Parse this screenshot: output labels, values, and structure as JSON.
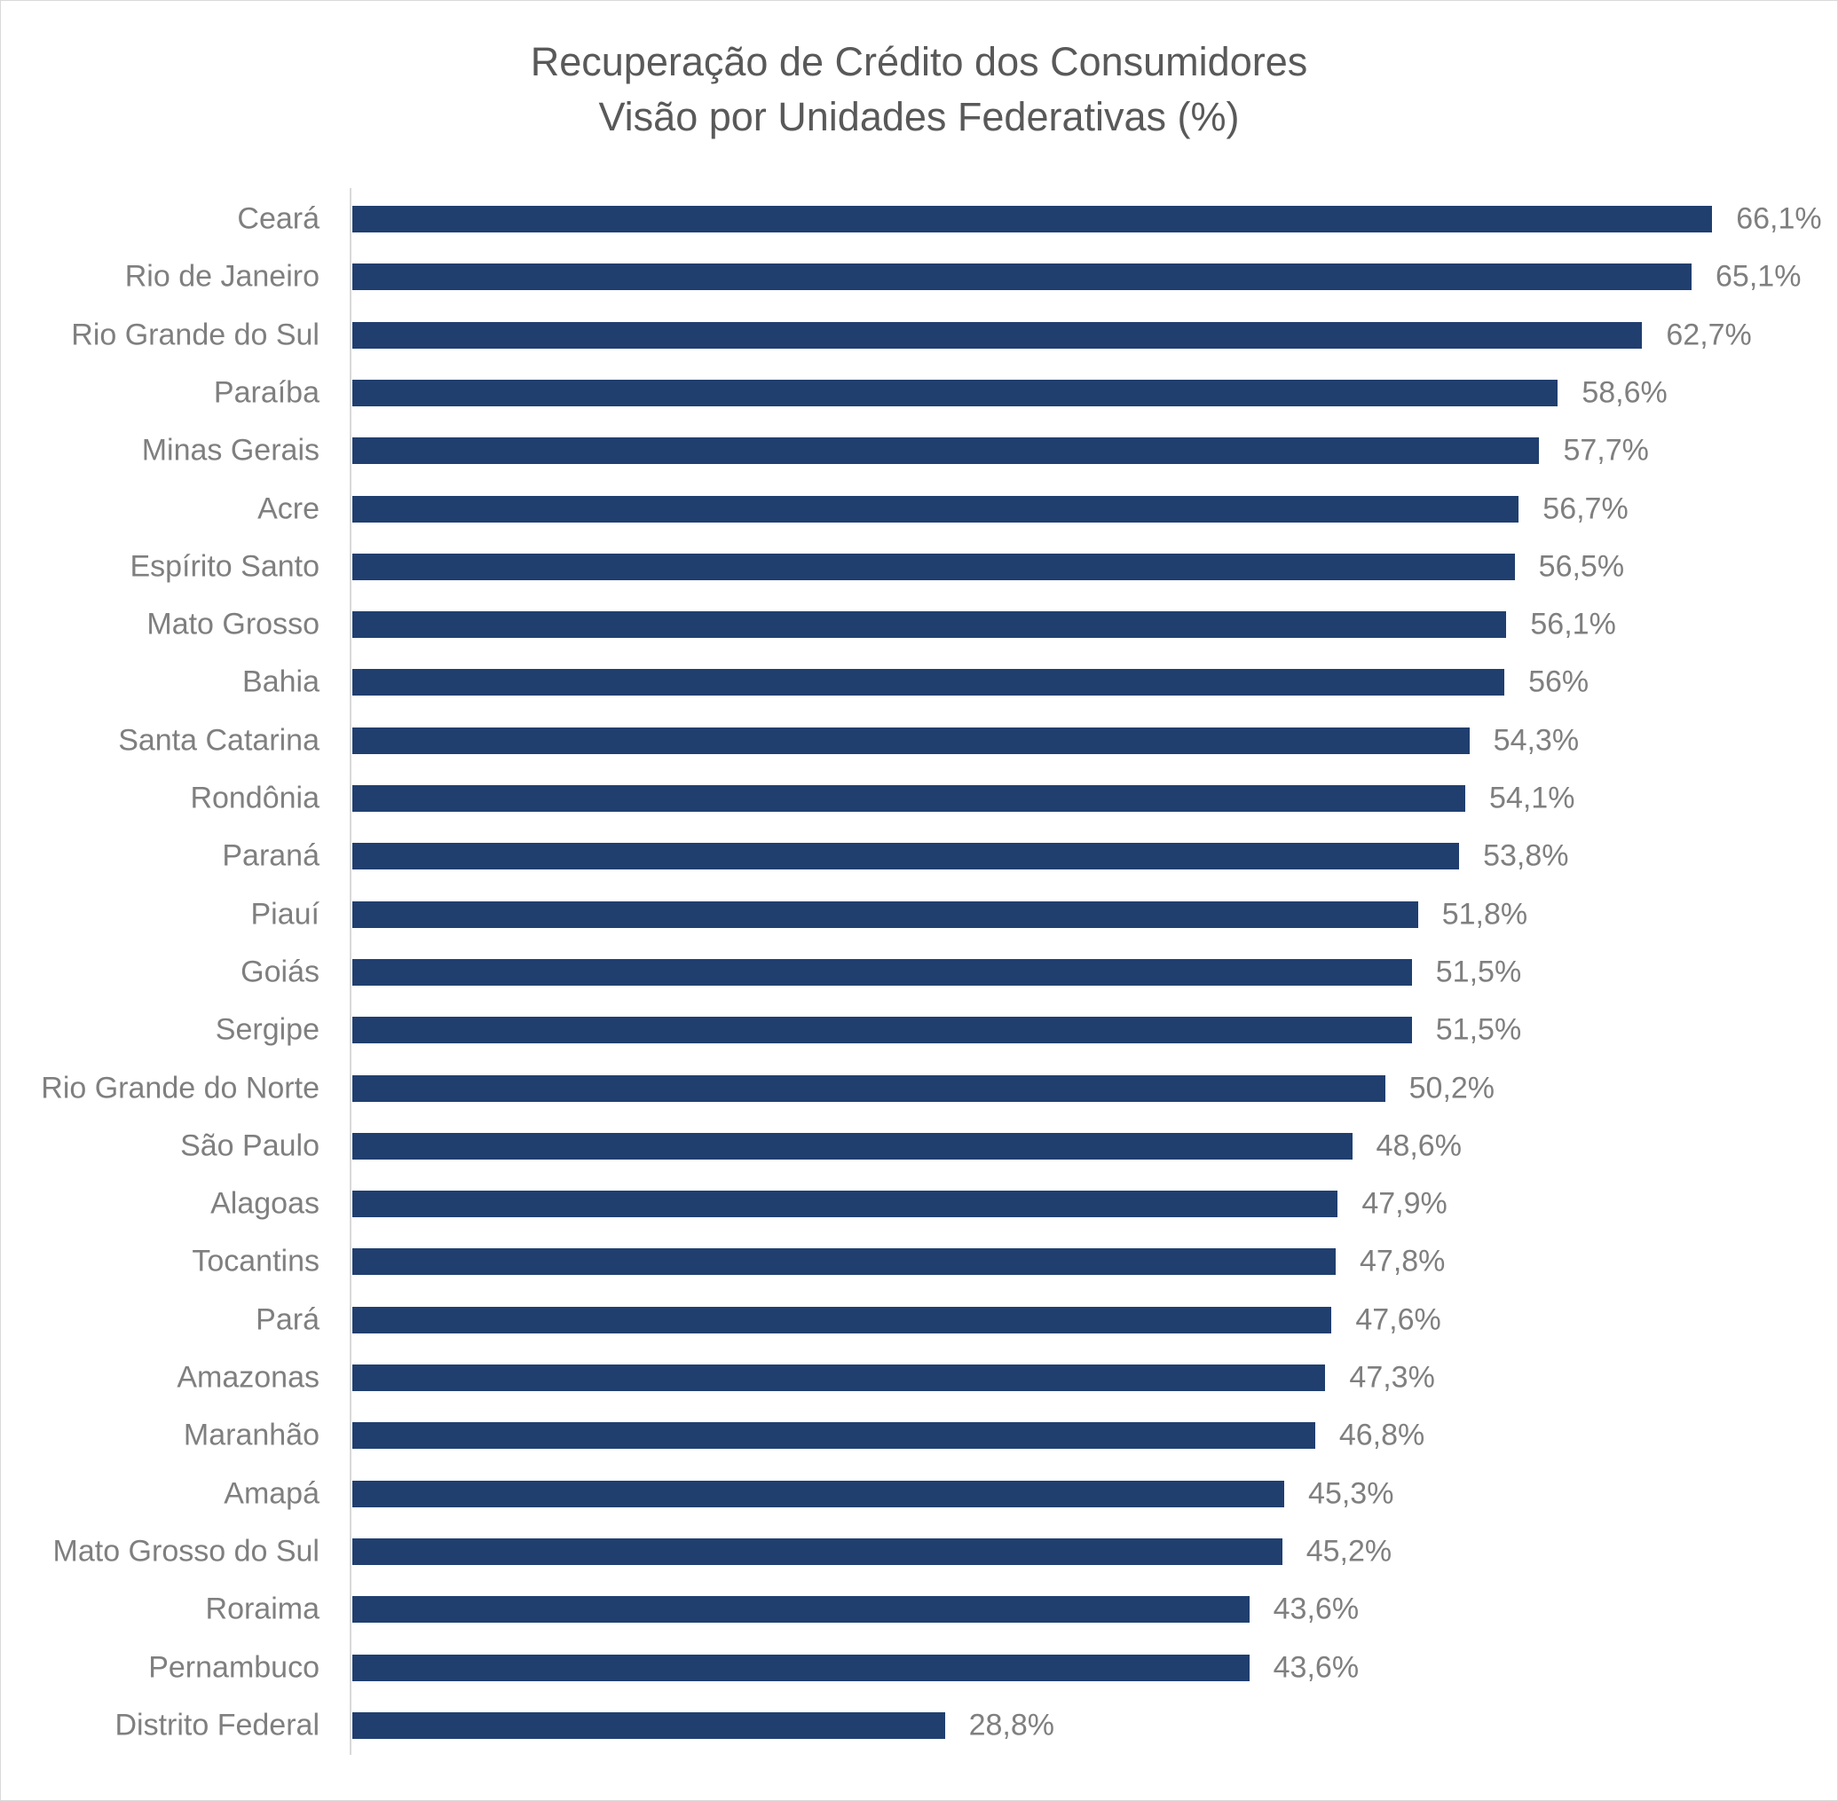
{
  "chart_data": {
    "type": "bar",
    "orientation": "horizontal",
    "title": [
      "Recuperação de Crédito dos Consumidores",
      "Visão por Unidades Federativas (%)"
    ],
    "xlabel": "",
    "ylabel": "",
    "grid": false,
    "legend": "none",
    "bar_color": "#203f6f",
    "categories": [
      "Ceará",
      "Rio de Janeiro",
      "Rio Grande do Sul",
      "Paraíba",
      "Minas Gerais",
      "Acre",
      "Espírito Santo",
      "Mato Grosso",
      "Bahia",
      "Santa Catarina",
      "Rondônia",
      "Paraná",
      "Piauí",
      "Goiás",
      "Sergipe",
      "Rio Grande do Norte",
      "São Paulo",
      "Alagoas",
      "Tocantins",
      "Pará",
      "Amazonas",
      "Maranhão",
      "Amapá",
      "Mato Grosso do Sul",
      "Roraima",
      "Pernambuco",
      "Distrito Federal"
    ],
    "values": [
      66.1,
      65.1,
      62.7,
      58.6,
      57.7,
      56.7,
      56.5,
      56.1,
      56,
      54.3,
      54.1,
      53.8,
      51.8,
      51.5,
      51.5,
      50.2,
      48.6,
      47.9,
      47.8,
      47.6,
      47.3,
      46.8,
      45.3,
      45.2,
      43.6,
      43.6,
      28.8
    ],
    "labels": [
      "66,1%",
      "65,1%",
      "62,7%",
      "58,6%",
      "57,7%",
      "56,7%",
      "56,5%",
      "56,1%",
      "56%",
      "54,3%",
      "54,1%",
      "53,8%",
      "51,8%",
      "51,5%",
      "51,5%",
      "50,2%",
      "48,6%",
      "47,9%",
      "47,8%",
      "47,6%",
      "47,3%",
      "46,8%",
      "45,3%",
      "45,2%",
      "43,6%",
      "43,6%",
      "28,8%"
    ]
  }
}
